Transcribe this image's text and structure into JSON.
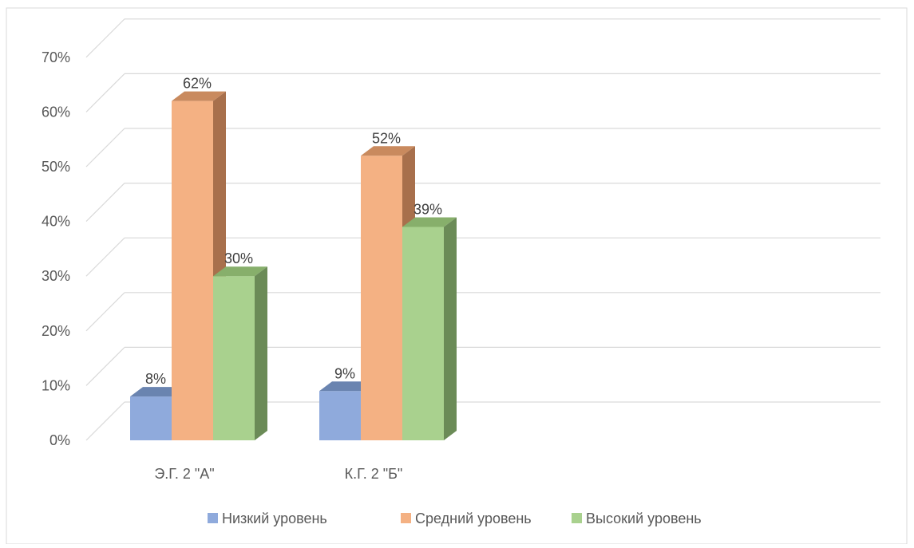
{
  "chart_data": {
    "type": "bar",
    "title": "",
    "xlabel": "",
    "ylabel": "",
    "categories": [
      "Э.Г. 2 \"А\"",
      "К.Г. 2 \"Б\""
    ],
    "series": [
      {
        "name": "Низкий уровень",
        "values": [
          8,
          9
        ],
        "labels": [
          "8%",
          "9%"
        ],
        "color": "#8FAADC",
        "top_color": "#6A84B0",
        "side_color": "#6E86B2"
      },
      {
        "name": "Средний уровень",
        "values": [
          62,
          52
        ],
        "labels": [
          "62%",
          "52%"
        ],
        "color": "#F4B183",
        "top_color": "#C98A5E",
        "side_color": "#A8704C"
      },
      {
        "name": "Высокий уровень",
        "values": [
          30,
          39
        ],
        "labels": [
          "30%",
          "39%"
        ],
        "color": "#A9D18E",
        "top_color": "#87AF6B",
        "side_color": "#6B8B57"
      }
    ],
    "ylim": [
      0,
      70
    ],
    "yticks": [
      "0%",
      "10%",
      "20%",
      "30%",
      "40%",
      "50%",
      "60%",
      "70%"
    ],
    "grid": true,
    "legend_position": "bottom",
    "style": "3d-clustered-column"
  }
}
